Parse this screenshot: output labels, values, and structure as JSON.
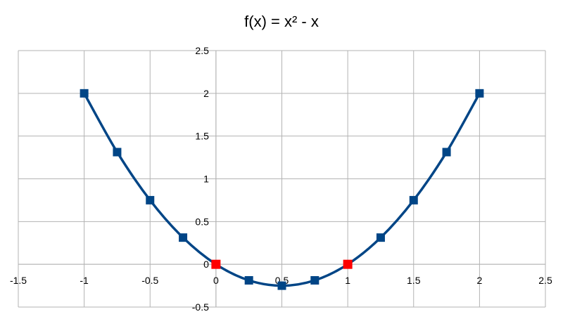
{
  "chart_data": {
    "type": "scatter",
    "title": "f(x) = x² - x",
    "xlabel": "",
    "ylabel": "",
    "xlim": [
      -1.5,
      2.5
    ],
    "ylim": [
      -0.5,
      2.5
    ],
    "x_ticks": [
      "-1.5",
      "-1",
      "-0.5",
      "0",
      "0.5",
      "1",
      "1.5",
      "2",
      "2.5"
    ],
    "y_ticks": [
      "-0.5",
      "0",
      "0.5",
      "1",
      "1.5",
      "2",
      "2.5"
    ],
    "grid": true,
    "line_smoothed": true,
    "series": [
      {
        "points": [
          {
            "x": -1,
            "y": 2
          },
          {
            "x": -0.75,
            "y": 1.3125
          },
          {
            "x": -0.5,
            "y": 0.75
          },
          {
            "x": -0.25,
            "y": 0.3125
          },
          {
            "x": 0,
            "y": 0
          },
          {
            "x": 0.25,
            "y": -0.1875
          },
          {
            "x": 0.5,
            "y": -0.25
          },
          {
            "x": 0.75,
            "y": -0.1875
          },
          {
            "x": 1,
            "y": 0
          },
          {
            "x": 1.25,
            "y": 0.3125
          },
          {
            "x": 1.5,
            "y": 0.75
          },
          {
            "x": 1.75,
            "y": 1.3125
          },
          {
            "x": 2,
            "y": 2
          }
        ],
        "color": "#004586"
      }
    ],
    "highlighted_points": [
      {
        "x": 0,
        "y": 0
      },
      {
        "x": 1,
        "y": 0
      }
    ],
    "highlight_color": "#ff0000",
    "grid_color": "#b3b3b3",
    "axis_color": "#b3b3b3"
  }
}
